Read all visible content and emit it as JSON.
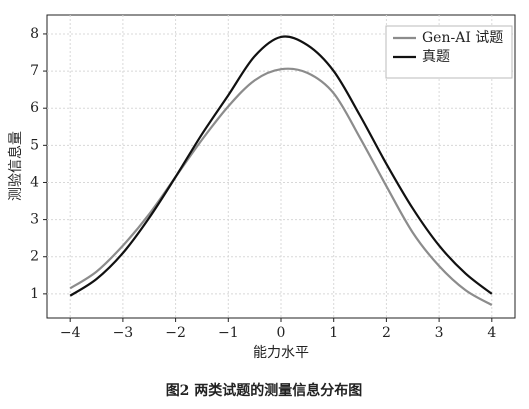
{
  "chart_data": {
    "type": "line",
    "x_label": "能力水平",
    "y_label": "测验信息量",
    "caption": "图2  两类试题的测量信息分布图",
    "x": [
      -4,
      -3.5,
      -3,
      -2.5,
      -2,
      -1.5,
      -1,
      -0.5,
      0,
      0.5,
      1,
      1.5,
      2,
      2.5,
      3,
      3.5,
      4
    ],
    "series": [
      {
        "name": "Gen-AI 试题",
        "color": "#8c8c8c",
        "values": [
          1.15,
          1.6,
          2.3,
          3.15,
          4.15,
          5.15,
          6.05,
          6.75,
          7.05,
          6.95,
          6.4,
          5.2,
          3.9,
          2.65,
          1.75,
          1.1,
          0.7
        ]
      },
      {
        "name": "真题",
        "color": "#111111",
        "values": [
          0.95,
          1.4,
          2.1,
          3.05,
          4.15,
          5.3,
          6.35,
          7.4,
          7.92,
          7.7,
          7.0,
          5.8,
          4.5,
          3.3,
          2.3,
          1.55,
          1.0
        ]
      }
    ],
    "xlim": [
      -4.44,
      4.44
    ],
    "ylim": [
      0.35,
      8.51
    ],
    "xticks": [
      {
        "value": -4,
        "label": "−4"
      },
      {
        "value": -3,
        "label": "−3"
      },
      {
        "value": -2,
        "label": "−2"
      },
      {
        "value": -1,
        "label": "−1"
      },
      0,
      1,
      2,
      3,
      4
    ],
    "yticks": [
      1,
      2,
      3,
      4,
      5,
      6,
      7,
      8
    ],
    "grid": true,
    "legend": "upper right"
  }
}
